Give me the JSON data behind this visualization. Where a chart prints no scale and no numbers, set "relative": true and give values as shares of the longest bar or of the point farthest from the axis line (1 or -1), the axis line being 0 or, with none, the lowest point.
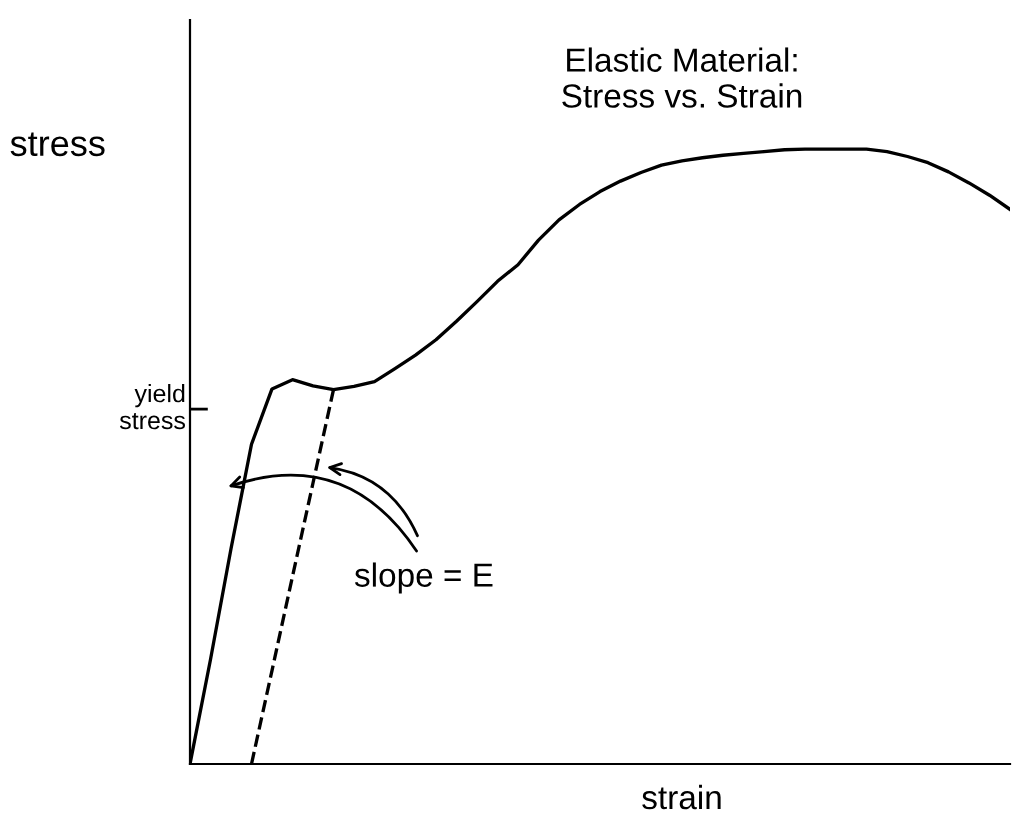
{
  "chart_data": {
    "type": "line",
    "title": "Elastic Material:\nStress vs. Strain",
    "xlabel": "strain",
    "ylabel": "stress",
    "relative": true,
    "categories": [
      null,
      null,
      null,
      null,
      null,
      null,
      null,
      null,
      null,
      null,
      null,
      null,
      null,
      null,
      null,
      null,
      null,
      null,
      null,
      null,
      null,
      null,
      null,
      null,
      null,
      null,
      null,
      null,
      null,
      null,
      null,
      null,
      null,
      null,
      null,
      null,
      null,
      null,
      null,
      null,
      null
    ],
    "series": [
      {
        "values": [
          0,
          0.17,
          0.35,
          0.52,
          0.61,
          0.625,
          0.615,
          0.609,
          0.614,
          0.622,
          0.643,
          0.665,
          0.69,
          0.72,
          0.752,
          0.785,
          0.812,
          0.852,
          0.885,
          0.91,
          0.931,
          0.948,
          0.962,
          0.974,
          0.981,
          0.986,
          0.99,
          0.993,
          0.996,
          0.999,
          1.0,
          1.0,
          1.0,
          1.0,
          0.996,
          0.988,
          0.978,
          0.963,
          0.945,
          0.925,
          0.902
        ],
        "color": "#000000",
        "line_style": "solid"
      },
      {
        "values": [
          null,
          null,
          null,
          0,
          0.152,
          0.305,
          0.457,
          0.609,
          null,
          null,
          null,
          null,
          null,
          null,
          null,
          null,
          null,
          null,
          null,
          null,
          null,
          null,
          null,
          null,
          null,
          null,
          null,
          null,
          null,
          null,
          null,
          null,
          null,
          null,
          null,
          null,
          null,
          null,
          null,
          null,
          null
        ],
        "color": "#000000",
        "line_style": "dashed"
      }
    ],
    "annotations": [
      "yield stress",
      "slope = E"
    ]
  }
}
